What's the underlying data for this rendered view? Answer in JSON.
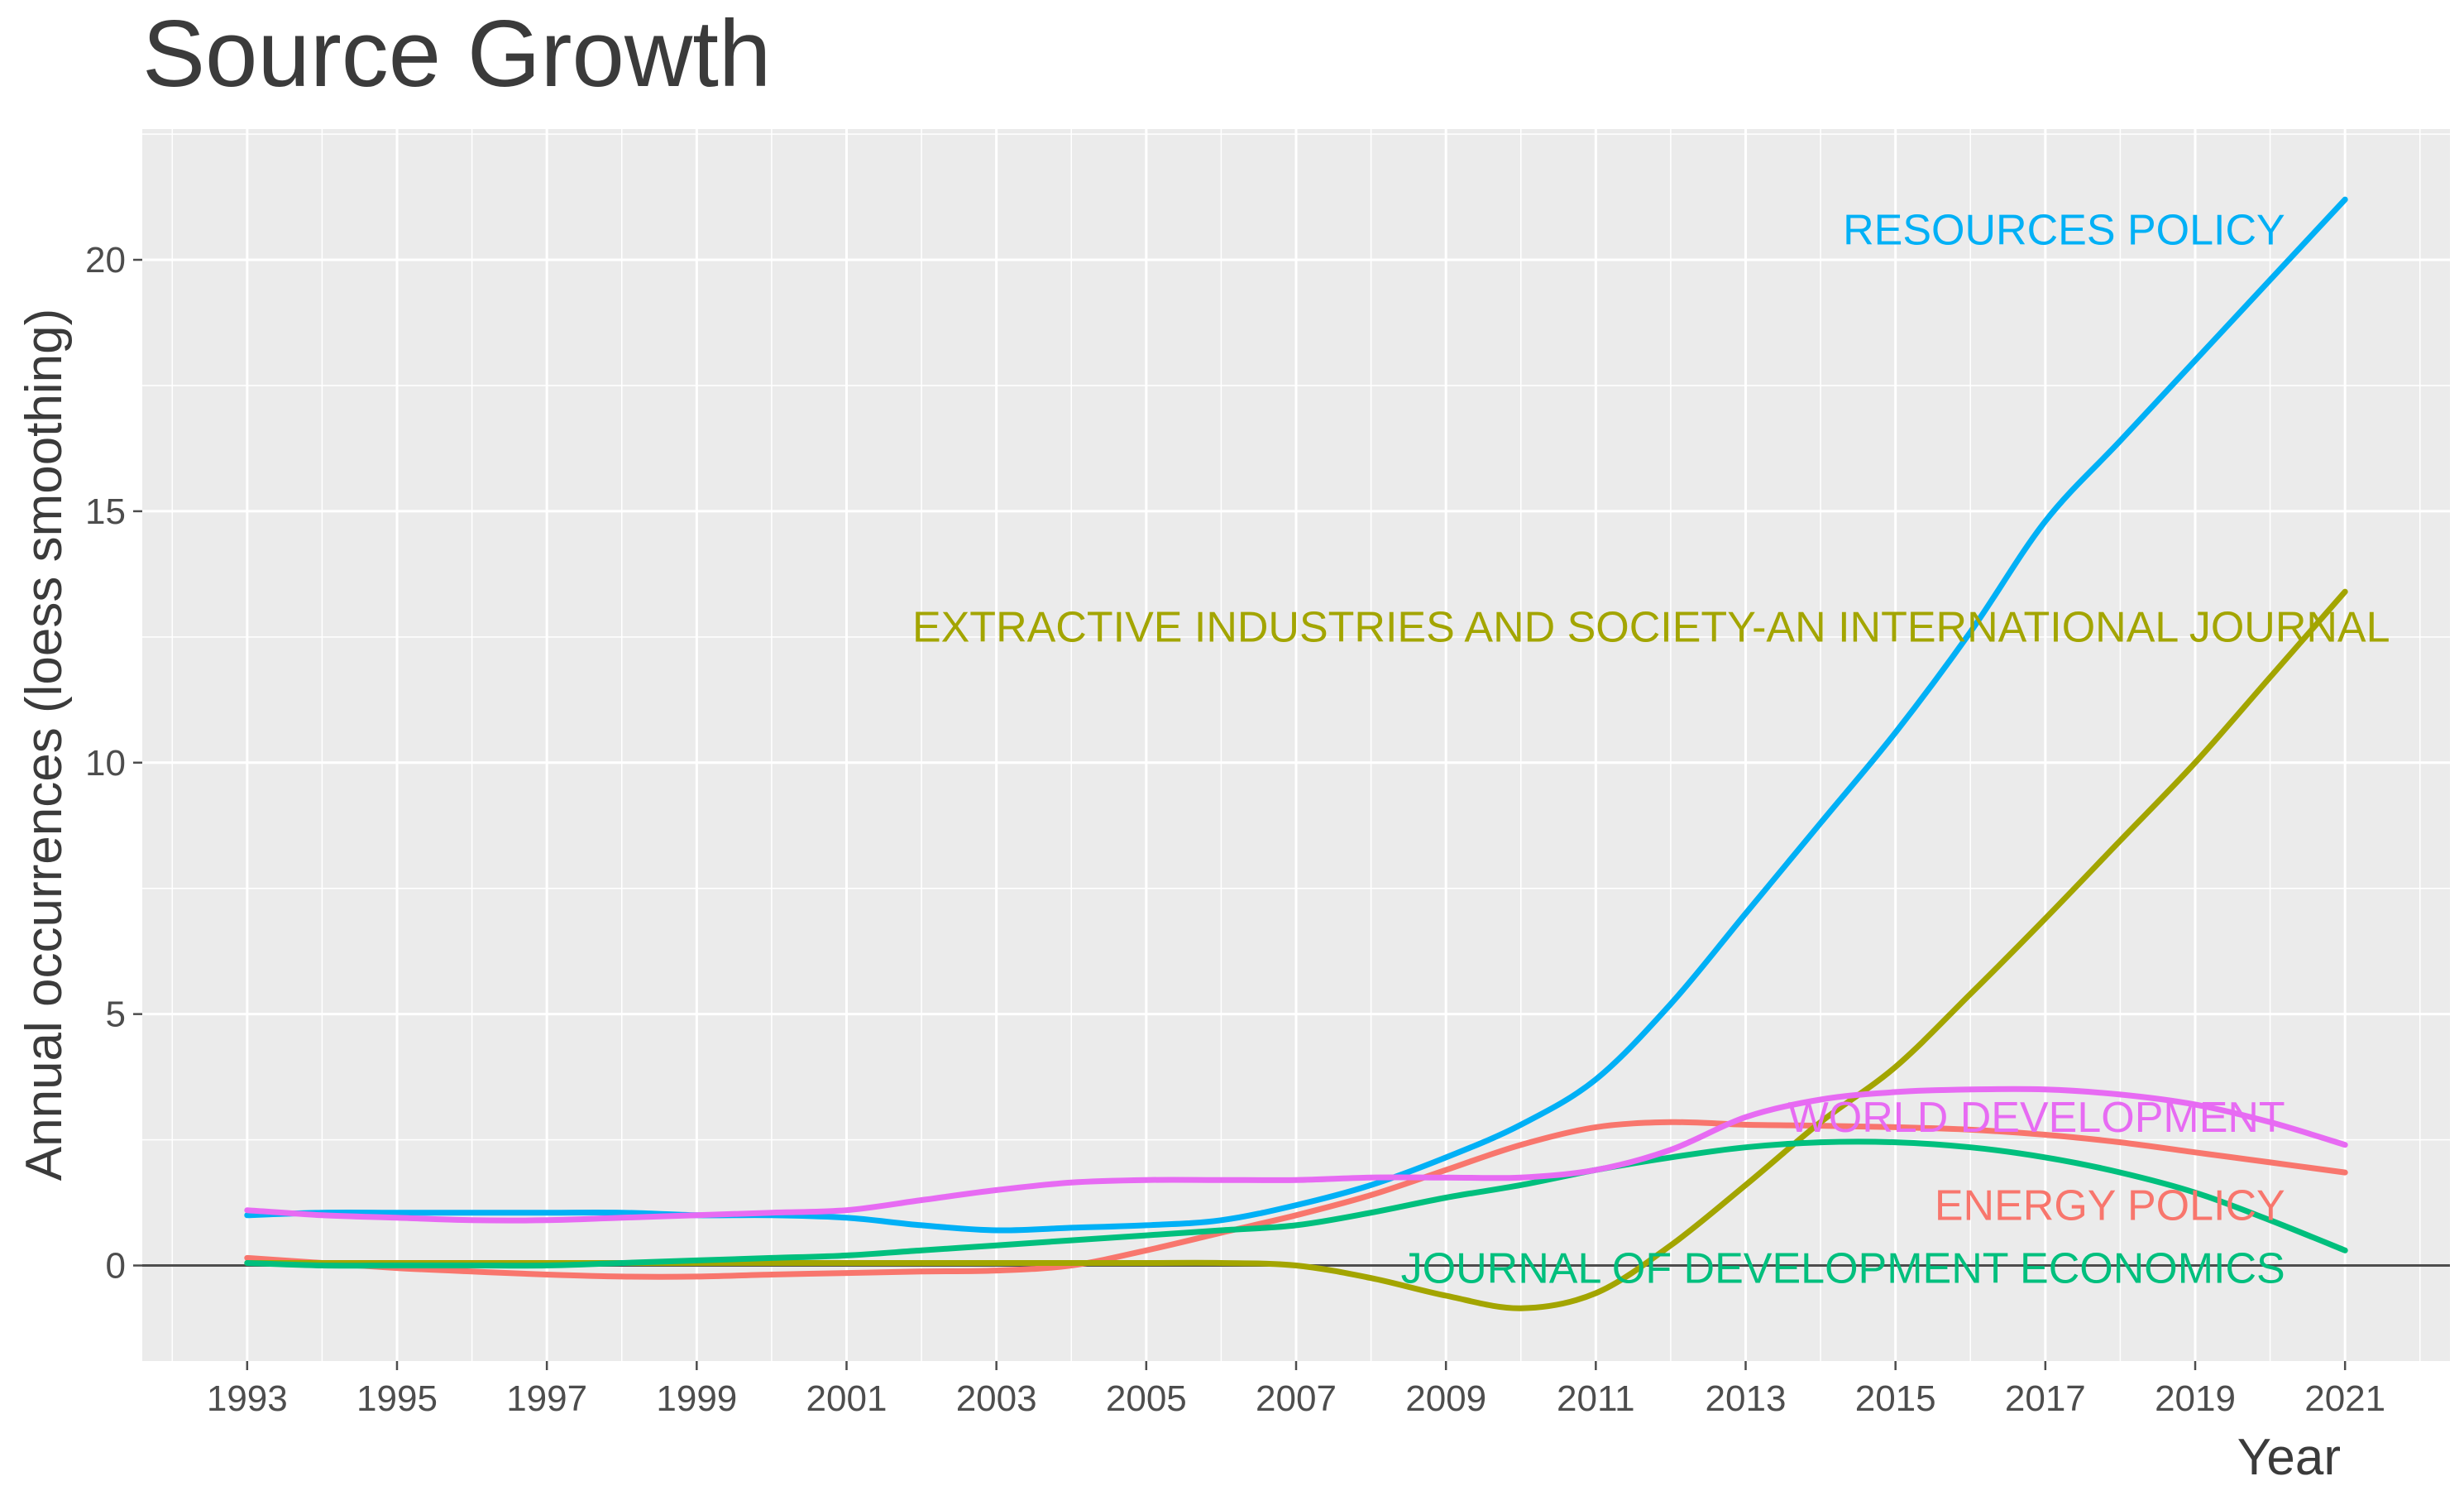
{
  "chart_data": {
    "type": "line",
    "title": "Source Growth",
    "xlabel": "Year",
    "ylabel": "Annual occurrences (loess smoothing)",
    "xlim": [
      1991.6,
      2022.4
    ],
    "ylim": [
      -1.9,
      22.6
    ],
    "x_ticks": [
      1993,
      1995,
      1997,
      1999,
      2001,
      2003,
      2005,
      2007,
      2009,
      2011,
      2013,
      2015,
      2017,
      2019,
      2021
    ],
    "x_tick_labels": [
      "1993",
      "1995",
      "1997",
      "1999",
      "2001",
      "2003",
      "2005",
      "2007",
      "2009",
      "2011",
      "2013",
      "2015",
      "2017",
      "2019",
      "2021"
    ],
    "y_ticks": [
      0,
      5,
      10,
      15,
      20
    ],
    "y_tick_labels": [
      "0",
      "5",
      "10",
      "15",
      "20"
    ],
    "grid": true,
    "zero_line": true,
    "legend": "inline labels at right end of lines",
    "background": "#ebebeb",
    "series": [
      {
        "name": "ENERGY POLICY",
        "color": "#f8766d",
        "label_year": 2020.2,
        "label_value": 1.2,
        "x": [
          1993,
          1994,
          1995,
          1996,
          1997,
          1998,
          1999,
          2000,
          2001,
          2002,
          2003,
          2004,
          2005,
          2006,
          2007,
          2008,
          2009,
          2010,
          2011,
          2012,
          2013,
          2014,
          2015,
          2016,
          2017,
          2018,
          2019,
          2020,
          2021
        ],
        "values": [
          0.15,
          0.05,
          -0.05,
          -0.12,
          -0.18,
          -0.22,
          -0.22,
          -0.18,
          -0.15,
          -0.12,
          -0.1,
          0.0,
          0.3,
          0.65,
          1.0,
          1.4,
          1.9,
          2.4,
          2.75,
          2.85,
          2.8,
          2.78,
          2.75,
          2.7,
          2.6,
          2.45,
          2.25,
          2.05,
          1.85
        ]
      },
      {
        "name": "EXTRACTIVE INDUSTRIES AND SOCIETY-AN INTERNATIONAL JOURNAL",
        "color": "#a3a500",
        "label_year": 2021.6,
        "label_value": 12.7,
        "x": [
          1993,
          1994,
          1995,
          1996,
          1997,
          1998,
          1999,
          2000,
          2001,
          2002,
          2003,
          2004,
          2005,
          2006,
          2007,
          2008,
          2009,
          2010,
          2011,
          2012,
          2013,
          2014,
          2015,
          2016,
          2017,
          2018,
          2019,
          2020,
          2021
        ],
        "values": [
          0.05,
          0.05,
          0.05,
          0.05,
          0.05,
          0.05,
          0.05,
          0.05,
          0.05,
          0.05,
          0.05,
          0.05,
          0.05,
          0.05,
          0.0,
          -0.25,
          -0.6,
          -0.85,
          -0.55,
          0.4,
          1.6,
          2.85,
          3.95,
          5.4,
          6.9,
          8.45,
          10.0,
          11.7,
          13.4
        ]
      },
      {
        "name": "JOURNAL OF DEVELOPMENT ECONOMICS",
        "color": "#00bf7d",
        "label_year": 2020.2,
        "label_value": -0.05,
        "x": [
          1993,
          1994,
          1995,
          1996,
          1997,
          1998,
          1999,
          2000,
          2001,
          2002,
          2003,
          2004,
          2005,
          2006,
          2007,
          2008,
          2009,
          2010,
          2011,
          2012,
          2013,
          2014,
          2015,
          2016,
          2017,
          2018,
          2019,
          2020,
          2021
        ],
        "values": [
          0.05,
          0.0,
          0.0,
          0.0,
          0.0,
          0.05,
          0.1,
          0.15,
          0.2,
          0.3,
          0.4,
          0.5,
          0.6,
          0.7,
          0.8,
          1.05,
          1.35,
          1.6,
          1.9,
          2.15,
          2.35,
          2.45,
          2.45,
          2.35,
          2.15,
          1.85,
          1.45,
          0.9,
          0.3
        ]
      },
      {
        "name": "RESOURCES POLICY",
        "color": "#00b0f6",
        "label_year": 2020.2,
        "label_value": 20.6,
        "x": [
          1993,
          1994,
          1995,
          1996,
          1997,
          1998,
          1999,
          2000,
          2001,
          2002,
          2003,
          2004,
          2005,
          2006,
          2007,
          2008,
          2009,
          2010,
          2011,
          2012,
          2013,
          2014,
          2015,
          2016,
          2017,
          2018,
          2019,
          2020,
          2021
        ],
        "values": [
          1.0,
          1.05,
          1.05,
          1.05,
          1.05,
          1.05,
          1.0,
          1.0,
          0.95,
          0.8,
          0.7,
          0.75,
          0.8,
          0.9,
          1.2,
          1.6,
          2.15,
          2.8,
          3.7,
          5.2,
          7.0,
          8.8,
          10.6,
          12.6,
          14.8,
          16.4,
          18.0,
          19.6,
          21.2
        ]
      },
      {
        "name": "WORLD DEVELOPMENT",
        "color": "#e76bf3",
        "label_year": 2020.2,
        "label_value": 2.95,
        "x": [
          1993,
          1994,
          1995,
          1996,
          1997,
          1998,
          1999,
          2000,
          2001,
          2002,
          2003,
          2004,
          2005,
          2006,
          2007,
          2008,
          2009,
          2010,
          2011,
          2012,
          2013,
          2014,
          2015,
          2016,
          2017,
          2018,
          2019,
          2020,
          2021
        ],
        "values": [
          1.1,
          1.0,
          0.95,
          0.9,
          0.9,
          0.95,
          1.0,
          1.05,
          1.1,
          1.3,
          1.5,
          1.65,
          1.7,
          1.7,
          1.7,
          1.75,
          1.75,
          1.75,
          1.9,
          2.3,
          2.95,
          3.3,
          3.45,
          3.5,
          3.5,
          3.4,
          3.2,
          2.85,
          2.4
        ]
      }
    ]
  }
}
